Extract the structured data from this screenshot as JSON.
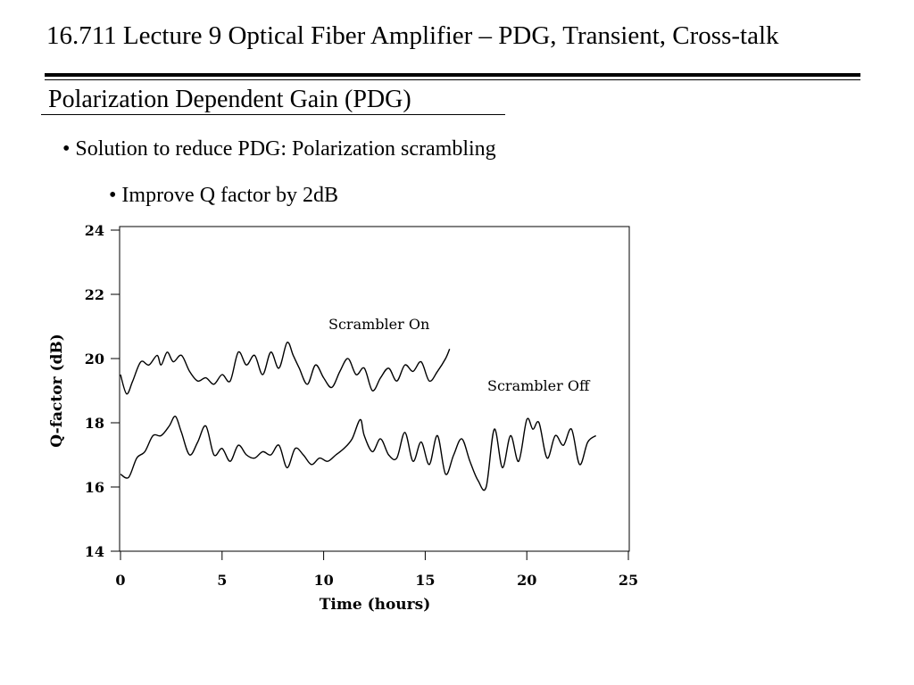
{
  "slide": {
    "title": "16.711 Lecture 9 Optical Fiber Amplifier – PDG, Transient, Cross-talk",
    "section_heading": "Polarization Dependent Gain (PDG)",
    "bullets": [
      "• Solution to reduce PDG: Polarization scrambling",
      "• Improve Q factor by 2dB"
    ]
  },
  "chart_data": {
    "type": "line",
    "xlabel": "Time (hours)",
    "ylabel": "Q-factor (dB)",
    "xlim": [
      0,
      25
    ],
    "ylim": [
      14,
      24
    ],
    "xticks": [
      "0",
      "5",
      "10",
      "15",
      "20",
      "25"
    ],
    "yticks": [
      "14",
      "16",
      "18",
      "20",
      "22",
      "24"
    ],
    "grid": false,
    "annotations": [
      "Scrambler On",
      "Scrambler Off"
    ],
    "series": [
      {
        "name": "Scrambler On",
        "x": [
          0,
          0.3,
          0.6,
          1.0,
          1.4,
          1.8,
          2.0,
          2.3,
          2.6,
          3.0,
          3.4,
          3.8,
          4.2,
          4.6,
          5.0,
          5.4,
          5.8,
          6.2,
          6.6,
          7.0,
          7.4,
          7.8,
          8.2,
          8.5,
          8.8,
          9.2,
          9.6,
          10.0,
          10.4,
          10.8,
          11.2,
          11.6,
          12.0,
          12.4,
          12.8,
          13.2,
          13.6,
          14.0,
          14.4,
          14.8,
          15.2,
          15.6,
          16.0,
          16.2
        ],
        "values": [
          19.5,
          18.9,
          19.3,
          19.9,
          19.8,
          20.1,
          19.8,
          20.2,
          19.9,
          20.1,
          19.6,
          19.3,
          19.4,
          19.2,
          19.5,
          19.3,
          20.2,
          19.8,
          20.1,
          19.5,
          20.2,
          19.7,
          20.5,
          20.1,
          19.7,
          19.2,
          19.8,
          19.4,
          19.1,
          19.6,
          20.0,
          19.5,
          19.7,
          19.0,
          19.4,
          19.7,
          19.3,
          19.8,
          19.6,
          19.9,
          19.3,
          19.6,
          20.0,
          20.3
        ]
      },
      {
        "name": "Scrambler Off",
        "x": [
          0,
          0.4,
          0.8,
          1.2,
          1.6,
          2.0,
          2.4,
          2.7,
          3.0,
          3.4,
          3.8,
          4.2,
          4.6,
          5.0,
          5.4,
          5.8,
          6.2,
          6.6,
          7.0,
          7.4,
          7.8,
          8.2,
          8.6,
          9.0,
          9.4,
          9.8,
          10.2,
          10.6,
          11.0,
          11.4,
          11.8,
          12.0,
          12.4,
          12.8,
          13.2,
          13.6,
          14.0,
          14.4,
          14.8,
          15.2,
          15.6,
          16.0,
          16.4,
          16.8,
          17.2,
          17.6,
          18.0,
          18.4,
          18.8,
          19.2,
          19.6,
          20.0,
          20.3,
          20.6,
          21.0,
          21.4,
          21.8,
          22.2,
          22.6,
          23.0,
          23.4
        ],
        "values": [
          16.4,
          16.3,
          16.9,
          17.1,
          17.6,
          17.6,
          17.9,
          18.2,
          17.7,
          17.0,
          17.4,
          17.9,
          17.0,
          17.2,
          16.8,
          17.3,
          17.0,
          16.9,
          17.1,
          17.0,
          17.3,
          16.6,
          17.2,
          17.0,
          16.7,
          16.9,
          16.8,
          17.0,
          17.2,
          17.5,
          18.1,
          17.6,
          17.1,
          17.5,
          17.0,
          16.9,
          17.7,
          16.8,
          17.4,
          16.7,
          17.6,
          16.4,
          17.0,
          17.5,
          16.8,
          16.2,
          16.0,
          17.8,
          16.6,
          17.6,
          16.8,
          18.1,
          17.8,
          18.0,
          16.9,
          17.6,
          17.3,
          17.8,
          16.7,
          17.4,
          17.6
        ]
      }
    ]
  }
}
